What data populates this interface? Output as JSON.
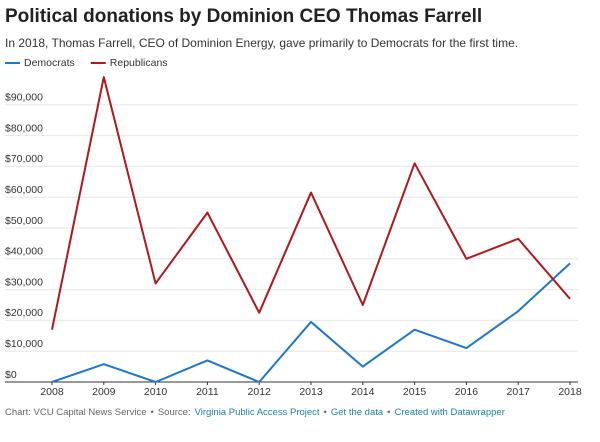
{
  "chart_data": {
    "type": "line",
    "title": "Political donations by Dominion CEO Thomas Farrell",
    "subtitle": "In 2018, Thomas Farrell, CEO of Dominion Energy, gave primarily to Democrats for the first time.",
    "x": [
      2008,
      2009,
      2010,
      2011,
      2012,
      2013,
      2014,
      2015,
      2016,
      2017,
      2018
    ],
    "xlim": [
      2008,
      2018
    ],
    "xticks": [
      2008,
      2009,
      2010,
      2011,
      2012,
      2013,
      2014,
      2015,
      2016,
      2017,
      2018
    ],
    "ylim": [
      0,
      100000
    ],
    "yticks": [
      {
        "value": 0,
        "label": "$0"
      },
      {
        "value": 10000,
        "label": "$10,000"
      },
      {
        "value": 20000,
        "label": "$20,000"
      },
      {
        "value": 30000,
        "label": "$30,000"
      },
      {
        "value": 40000,
        "label": "$40,000"
      },
      {
        "value": 50000,
        "label": "$50,000"
      },
      {
        "value": 60000,
        "label": "$60,000"
      },
      {
        "value": 70000,
        "label": "$70,000"
      },
      {
        "value": 80000,
        "label": "$80,000"
      },
      {
        "value": 90000,
        "label": "$90,000"
      }
    ],
    "grid": true,
    "legend": "top-left",
    "series": [
      {
        "name": "Democrats",
        "color": "#1f77c9",
        "values": [
          0,
          5800,
          0,
          7000,
          0,
          19500,
          5000,
          17000,
          11000,
          23000,
          38500
        ]
      },
      {
        "name": "Republicans",
        "color": "#b0181e",
        "values": [
          17000,
          99000,
          32000,
          55000,
          22500,
          61500,
          25000,
          71000,
          40000,
          46500,
          27000
        ]
      }
    ],
    "footer": {
      "credit": "Chart: VCU Capital News Service",
      "separator": "•",
      "source_label": "Source:",
      "source": "Virginia Public Access Project",
      "links": [
        "Get the data",
        "Created with Datawrapper"
      ]
    }
  }
}
